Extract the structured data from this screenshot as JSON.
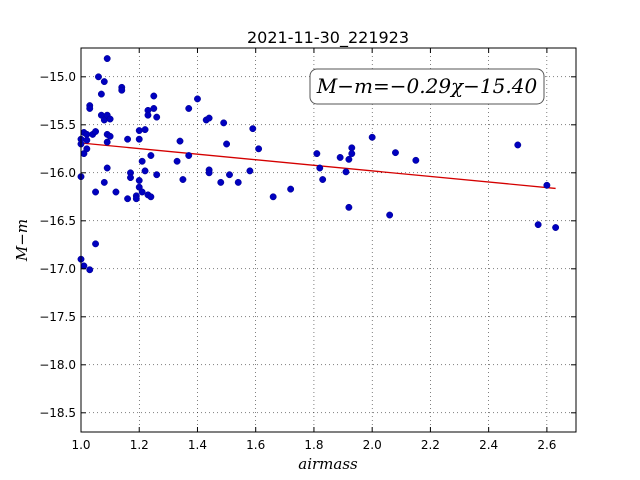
{
  "chart_data": {
    "type": "scatter",
    "title": "2021-11-30_221923",
    "xlabel": "airmass",
    "ylabel": "M−m",
    "xlim": [
      1.0,
      2.7
    ],
    "ylim": [
      -18.7,
      -14.7
    ],
    "y_inverted": true,
    "grid": true,
    "xticks": [
      1.0,
      1.2,
      1.4,
      1.6,
      1.8,
      2.0,
      2.2,
      2.4,
      2.6
    ],
    "xtick_labels": [
      "1.0",
      "1.2",
      "1.4",
      "1.6",
      "1.8",
      "2.0",
      "2.2",
      "2.4",
      "2.6"
    ],
    "yticks": [
      -15.0,
      -15.5,
      -16.0,
      -16.5,
      -17.0,
      -17.5,
      -18.0,
      -18.5
    ],
    "ytick_labels": [
      "−15.0",
      "−15.5",
      "−16.0",
      "−16.5",
      "−17.0",
      "−17.5",
      "−18.0",
      "−18.5"
    ],
    "annotation": "M−m=−0.29χ−15.40",
    "fit": {
      "slope": -0.29,
      "intercept": -15.4,
      "x_range": [
        1.0,
        2.63
      ],
      "color": "#d40000"
    },
    "points_color": "#0000bf",
    "points": [
      [
        1.0,
        -15.7
      ],
      [
        1.0,
        -15.65
      ],
      [
        1.0,
        -16.04
      ],
      [
        1.0,
        -16.9
      ],
      [
        1.01,
        -15.58
      ],
      [
        1.01,
        -15.8
      ],
      [
        1.01,
        -16.97
      ],
      [
        1.02,
        -15.6
      ],
      [
        1.02,
        -15.66
      ],
      [
        1.02,
        -15.75
      ],
      [
        1.03,
        -15.3
      ],
      [
        1.03,
        -15.33
      ],
      [
        1.03,
        -17.01
      ],
      [
        1.04,
        -15.6
      ],
      [
        1.05,
        -15.57
      ],
      [
        1.05,
        -16.2
      ],
      [
        1.05,
        -16.74
      ],
      [
        1.06,
        -15.0
      ],
      [
        1.07,
        -15.18
      ],
      [
        1.07,
        -15.4
      ],
      [
        1.08,
        -15.05
      ],
      [
        1.08,
        -15.45
      ],
      [
        1.08,
        -16.1
      ],
      [
        1.09,
        -14.81
      ],
      [
        1.09,
        -15.4
      ],
      [
        1.09,
        -15.6
      ],
      [
        1.09,
        -15.68
      ],
      [
        1.09,
        -15.95
      ],
      [
        1.1,
        -15.62
      ],
      [
        1.1,
        -15.44
      ],
      [
        1.12,
        -16.2
      ],
      [
        1.14,
        -15.11
      ],
      [
        1.14,
        -15.14
      ],
      [
        1.16,
        -15.65
      ],
      [
        1.16,
        -16.27
      ],
      [
        1.17,
        -16.0
      ],
      [
        1.17,
        -16.05
      ],
      [
        1.19,
        -16.24
      ],
      [
        1.19,
        -16.27
      ],
      [
        1.2,
        -15.56
      ],
      [
        1.2,
        -15.65
      ],
      [
        1.2,
        -16.08
      ],
      [
        1.2,
        -16.15
      ],
      [
        1.21,
        -15.88
      ],
      [
        1.21,
        -16.2
      ],
      [
        1.22,
        -15.55
      ],
      [
        1.22,
        -15.98
      ],
      [
        1.23,
        -15.35
      ],
      [
        1.23,
        -15.4
      ],
      [
        1.23,
        -16.23
      ],
      [
        1.24,
        -15.82
      ],
      [
        1.24,
        -16.25
      ],
      [
        1.25,
        -15.2
      ],
      [
        1.25,
        -15.33
      ],
      [
        1.26,
        -15.42
      ],
      [
        1.26,
        -16.02
      ],
      [
        1.33,
        -15.88
      ],
      [
        1.34,
        -15.67
      ],
      [
        1.35,
        -16.07
      ],
      [
        1.37,
        -15.33
      ],
      [
        1.37,
        -15.82
      ],
      [
        1.4,
        -15.23
      ],
      [
        1.43,
        -15.45
      ],
      [
        1.44,
        -15.43
      ],
      [
        1.44,
        -15.97
      ],
      [
        1.44,
        -16.0
      ],
      [
        1.48,
        -16.1
      ],
      [
        1.49,
        -15.48
      ],
      [
        1.5,
        -15.7
      ],
      [
        1.51,
        -16.02
      ],
      [
        1.54,
        -16.1
      ],
      [
        1.58,
        -15.98
      ],
      [
        1.59,
        -15.54
      ],
      [
        1.61,
        -15.75
      ],
      [
        1.66,
        -16.25
      ],
      [
        1.72,
        -16.17
      ],
      [
        1.81,
        -15.8
      ],
      [
        1.82,
        -15.95
      ],
      [
        1.83,
        -16.07
      ],
      [
        1.89,
        -15.84
      ],
      [
        1.91,
        -15.99
      ],
      [
        1.92,
        -15.86
      ],
      [
        1.92,
        -16.36
      ],
      [
        1.93,
        -15.74
      ],
      [
        1.93,
        -15.8
      ],
      [
        2.0,
        -15.63
      ],
      [
        2.06,
        -16.44
      ],
      [
        2.08,
        -15.79
      ],
      [
        2.15,
        -15.87
      ],
      [
        2.5,
        -15.71
      ],
      [
        2.57,
        -16.54
      ],
      [
        2.6,
        -16.13
      ],
      [
        2.63,
        -16.57
      ]
    ]
  }
}
